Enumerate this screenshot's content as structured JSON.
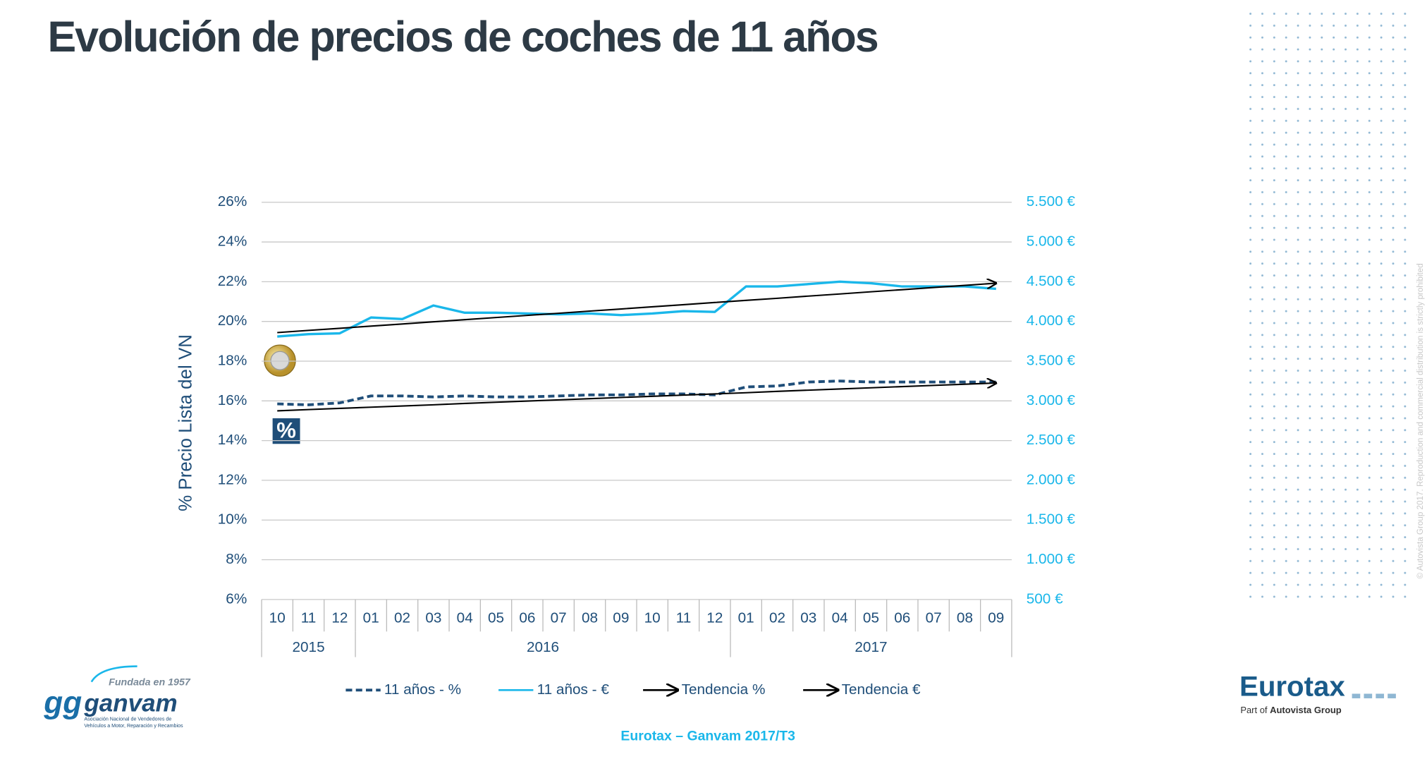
{
  "title": "Evolución de precios de coches de 11 años",
  "copyright": "© Autovista Group 2017. Reproduction and commercial distribution is strictly prohibited",
  "badge": "%",
  "footer": "Eurotax – Ganvam 2017/T3",
  "ganvam_logo": {
    "tagline": "Fundada en 1957",
    "name": "ganvam",
    "description_1": "Asociación Nacional de Vendedores de",
    "description_2": "Vehículos a Motor, Reparación y Recambios"
  },
  "eurotax_logo": {
    "name": "Eurotax",
    "subtitle_prefix": "Part of",
    "subtitle_group": "Autovista Group"
  },
  "chart_data": {
    "type": "line",
    "y_label": "% Precio Lista del VN",
    "categories": [
      "10",
      "11",
      "12",
      "01",
      "02",
      "03",
      "04",
      "05",
      "06",
      "07",
      "08",
      "09",
      "10",
      "11",
      "12",
      "01",
      "02",
      "03",
      "04",
      "05",
      "06",
      "07",
      "08",
      "09"
    ],
    "year_groups": [
      "2015",
      "2016",
      "2017"
    ],
    "ylim": [
      6,
      26
    ],
    "yticks": [
      {
        "value": 6,
        "label": "6%"
      },
      {
        "value": 8,
        "label": "8%"
      },
      {
        "value": 10,
        "label": "10%"
      },
      {
        "value": 12,
        "label": "12%"
      },
      {
        "value": 14,
        "label": "14%"
      },
      {
        "value": 16,
        "label": "16%"
      },
      {
        "value": 18,
        "label": "18%"
      },
      {
        "value": 20,
        "label": "20%"
      },
      {
        "value": 22,
        "label": "22%"
      },
      {
        "value": 24,
        "label": "24%"
      },
      {
        "value": 26,
        "label": "26%"
      }
    ],
    "y2lim": [
      500,
      5500
    ],
    "y2ticks": [
      {
        "value": 500,
        "label": "500 €"
      },
      {
        "value": 1000,
        "label": "1.000 €"
      },
      {
        "value": 1500,
        "label": "1.500 €"
      },
      {
        "value": 2000,
        "label": "2.000 €"
      },
      {
        "value": 2500,
        "label": "2.500 €"
      },
      {
        "value": 3000,
        "label": "3.000 €"
      },
      {
        "value": 3500,
        "label": "3.500 €"
      },
      {
        "value": 4000,
        "label": "4.000 €"
      },
      {
        "value": 4500,
        "label": "4.500 €"
      },
      {
        "value": 5000,
        "label": "5.000 €"
      },
      {
        "value": 5500,
        "label": "5.500 €"
      }
    ],
    "grid": true,
    "series": [
      {
        "name": "11 años - %",
        "color": "#1f4e79",
        "dashed": true,
        "values": [
          15.85,
          15.8,
          15.9,
          16.25,
          16.25,
          16.2,
          16.25,
          16.2,
          16.2,
          16.25,
          16.3,
          16.3,
          16.35,
          16.35,
          16.3,
          16.7,
          16.75,
          16.95,
          17.0,
          16.95,
          16.95,
          16.95,
          16.95,
          16.95
        ]
      },
      {
        "name": "11 años - €",
        "color": "#1ab7ea",
        "axis": "y2",
        "values": [
          3810,
          3840,
          3850,
          4050,
          4030,
          4200,
          4110,
          4110,
          4100,
          4090,
          4100,
          4080,
          4100,
          4130,
          4120,
          4440,
          4440,
          4470,
          4500,
          4480,
          4440,
          4440,
          4440,
          4410
        ]
      },
      {
        "name": "Tendencia %",
        "color": "#000000",
        "arrow": true,
        "values": [
          15.5,
          15.56,
          15.62,
          15.68,
          15.74,
          15.8,
          15.87,
          15.93,
          15.99,
          16.05,
          16.11,
          16.17,
          16.23,
          16.29,
          16.35,
          16.41,
          16.48,
          16.54,
          16.6,
          16.66,
          16.72,
          16.78,
          16.84,
          16.9
        ]
      },
      {
        "name": "Tendencia €",
        "color": "#000000",
        "arrow": true,
        "axis": "y2",
        "values": [
          3860,
          3887,
          3914,
          3941,
          3968,
          3995,
          4022,
          4049,
          4076,
          4103,
          4130,
          4157,
          4184,
          4211,
          4238,
          4265,
          4292,
          4319,
          4346,
          4373,
          4400,
          4427,
          4454,
          4481
        ]
      }
    ]
  }
}
